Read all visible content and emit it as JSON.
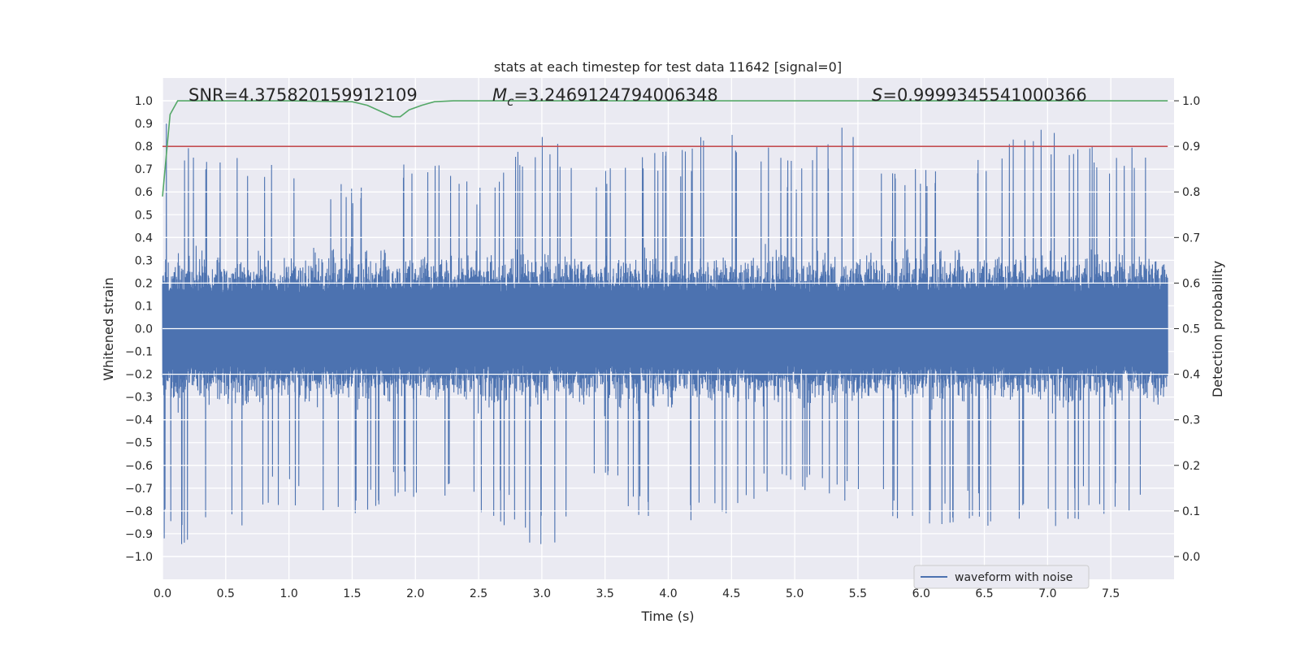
{
  "chart_data": {
    "type": "line",
    "title": "stats at each timestep for test data 11642 [signal=0]",
    "xlabel": "Time (s)",
    "ylabel": "Whitened strain",
    "y2label": "Detection probability",
    "xlim": [
      0.0,
      8.0
    ],
    "ylim": [
      -1.1,
      1.1
    ],
    "y2lim": [
      -0.05,
      1.05
    ],
    "x_ticks": [
      "0.0",
      "0.5",
      "1.0",
      "1.5",
      "2.0",
      "2.5",
      "3.0",
      "3.5",
      "4.0",
      "4.5",
      "5.0",
      "5.5",
      "6.0",
      "6.5",
      "7.0",
      "7.5"
    ],
    "y_ticks": [
      "1.0",
      "0.9",
      "0.8",
      "0.7",
      "0.6",
      "0.5",
      "0.4",
      "0.3",
      "0.2",
      "0.1",
      "0.0",
      "−0.1",
      "−0.2",
      "−0.3",
      "−0.4",
      "−0.5",
      "−0.6",
      "−0.7",
      "−0.8",
      "−0.9",
      "−1.0"
    ],
    "y2_ticks": [
      "1.0",
      "0.9",
      "0.8",
      "0.7",
      "0.6",
      "0.5",
      "0.4",
      "0.3",
      "0.2",
      "0.1",
      "0.0"
    ],
    "grid": true,
    "legend_position": "lower-right",
    "annotations": {
      "snr": "SNR=4.375820159912109",
      "mc_symbol": "M",
      "mc_sub": "c",
      "mc_value": "=3.2469124794006348",
      "s_symbol": "S",
      "s_value": "=0.9999345541000366"
    },
    "series": [
      {
        "name": "waveform with noise",
        "axis": "left",
        "color": "#4c72b0",
        "x_range": [
          0.0,
          7.95
        ],
        "envelope": {
          "time": [
            0.0,
            0.5,
            1.0,
            1.5,
            2.0,
            2.5,
            3.0,
            3.5,
            4.0,
            4.5,
            5.0,
            5.5,
            6.0,
            6.5,
            7.0,
            7.5,
            7.95
          ],
          "max": [
            0.97,
            0.77,
            0.81,
            0.63,
            0.79,
            0.66,
            0.89,
            0.7,
            0.8,
            0.91,
            0.75,
            0.93,
            0.71,
            0.79,
            0.94,
            0.78,
            0.9
          ],
          "min": [
            -0.97,
            -0.9,
            -0.78,
            -0.82,
            -0.75,
            -0.82,
            -0.99,
            -0.75,
            -0.92,
            -0.83,
            -0.72,
            -0.8,
            -0.86,
            -0.88,
            -0.9,
            -0.82,
            -0.77
          ]
        }
      },
      {
        "name": "",
        "axis": "right",
        "color": "#c44e52",
        "x": [
          0.0,
          7.95
        ],
        "y": [
          0.9,
          0.9
        ]
      },
      {
        "name": "",
        "axis": "right",
        "color": "#55a868",
        "x": [
          0.0,
          0.03,
          0.06,
          0.12,
          0.5,
          1.0,
          1.5,
          1.62,
          1.7,
          1.78,
          1.82,
          1.88,
          1.95,
          2.05,
          2.15,
          2.3,
          3.0,
          4.0,
          5.0,
          6.0,
          7.0,
          7.95
        ],
        "y": [
          0.79,
          0.88,
          0.97,
          1.0,
          1.0,
          1.0,
          0.998,
          0.99,
          0.98,
          0.97,
          0.965,
          0.965,
          0.98,
          0.99,
          0.998,
          1.0,
          1.0,
          1.0,
          1.0,
          1.0,
          1.0,
          1.0
        ]
      }
    ]
  }
}
